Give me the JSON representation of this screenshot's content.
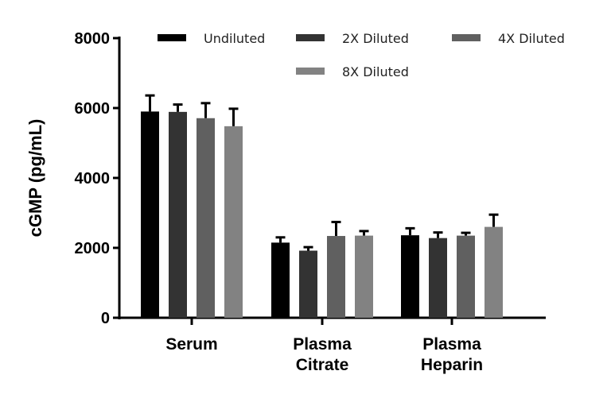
{
  "chart_data": {
    "type": "bar",
    "title": "",
    "xlabel": "",
    "ylabel": "cGMP (pg/mL)",
    "ylim": [
      0,
      8000
    ],
    "yticks": [
      0,
      2000,
      4000,
      6000,
      8000
    ],
    "categories": [
      [
        "Serum"
      ],
      [
        "Plasma",
        "Citrate"
      ],
      [
        "Plasma",
        "Heparin"
      ]
    ],
    "legend_position": "top",
    "grid": false,
    "series": [
      {
        "name": "Undiluted",
        "color": "#000000",
        "values": [
          5900,
          2150,
          2360
        ],
        "errors": [
          460,
          150,
          200
        ]
      },
      {
        "name": "2X Diluted",
        "color": "#333333",
        "values": [
          5890,
          1920,
          2280
        ],
        "errors": [
          210,
          100,
          160
        ]
      },
      {
        "name": "4X Diluted",
        "color": "#606060",
        "values": [
          5710,
          2340,
          2350
        ],
        "errors": [
          430,
          400,
          80
        ]
      },
      {
        "name": "8X Diluted",
        "color": "#828282",
        "values": [
          5480,
          2350,
          2600
        ],
        "errors": [
          500,
          130,
          350
        ]
      }
    ]
  }
}
